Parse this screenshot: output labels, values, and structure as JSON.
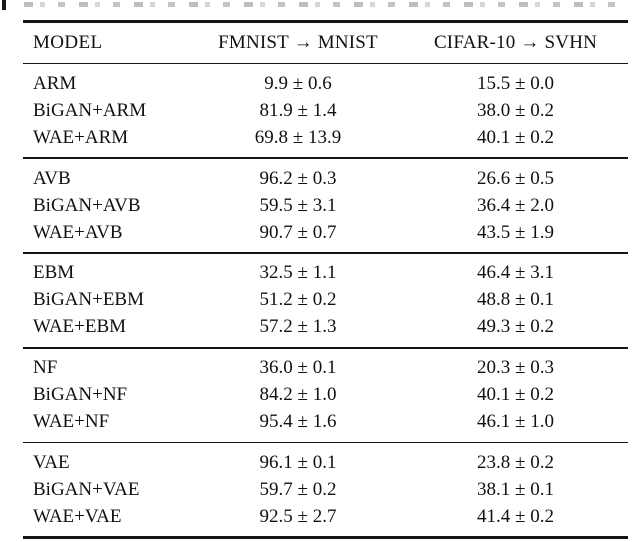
{
  "table": {
    "header": {
      "model": "MODEL",
      "col1": "FMNIST → MNIST",
      "col2": "CIFAR-10 → SVHN"
    },
    "groups": [
      {
        "rows": [
          {
            "model": "ARM",
            "v1": "9.9 ± 0.6",
            "v2": "15.5 ± 0.0"
          },
          {
            "model": "BiGAN+ARM",
            "v1": "81.9 ± 1.4",
            "v2": "38.0 ± 0.2"
          },
          {
            "model": "WAE+ARM",
            "v1": "69.8 ± 13.9",
            "v2": "40.1 ± 0.2"
          }
        ]
      },
      {
        "rows": [
          {
            "model": "AVB",
            "v1": "96.2 ± 0.3",
            "v2": "26.6 ± 0.5"
          },
          {
            "model": "BiGAN+AVB",
            "v1": "59.5 ± 3.1",
            "v2": "36.4 ± 2.0"
          },
          {
            "model": "WAE+AVB",
            "v1": "90.7 ± 0.7",
            "v2": "43.5 ± 1.9"
          }
        ]
      },
      {
        "rows": [
          {
            "model": "EBM",
            "v1": "32.5 ± 1.1",
            "v2": "46.4 ± 3.1"
          },
          {
            "model": "BiGAN+EBM",
            "v1": "51.2 ± 0.2",
            "v2": "48.8 ± 0.1"
          },
          {
            "model": "WAE+EBM",
            "v1": "57.2 ± 1.3",
            "v2": "49.3 ± 0.2"
          }
        ]
      },
      {
        "rows": [
          {
            "model": "NF",
            "v1": "36.0 ± 0.1",
            "v2": "20.3 ± 0.3"
          },
          {
            "model": "BiGAN+NF",
            "v1": "84.2 ± 1.0",
            "v2": "40.1 ± 0.2"
          },
          {
            "model": "WAE+NF",
            "v1": "95.4 ± 1.6",
            "v2": "46.1 ± 1.0"
          }
        ]
      },
      {
        "rows": [
          {
            "model": "VAE",
            "v1": "96.1 ± 0.1",
            "v2": "23.8 ± 0.2"
          },
          {
            "model": "BiGAN+VAE",
            "v1": "59.7 ± 0.2",
            "v2": "38.1 ± 0.1"
          },
          {
            "model": "WAE+VAE",
            "v1": "92.5 ± 2.7",
            "v2": "41.4 ± 0.2"
          }
        ]
      }
    ]
  }
}
